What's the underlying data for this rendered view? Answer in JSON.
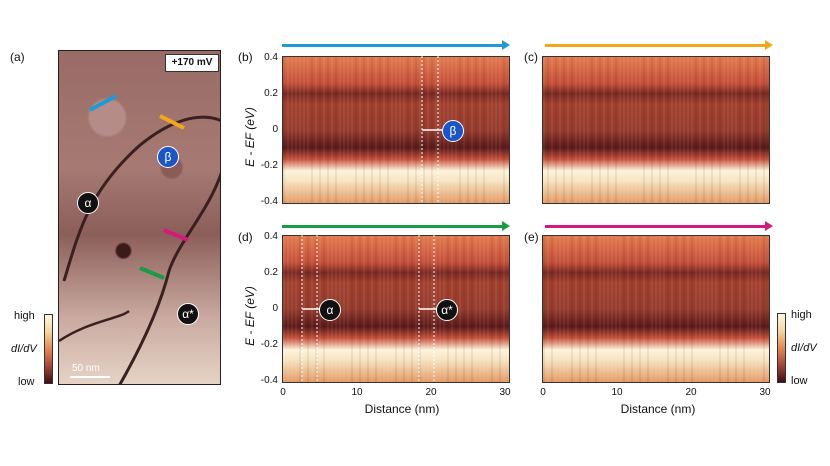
{
  "panels": {
    "a": "(a)",
    "b": "(b)",
    "c": "(c)",
    "d": "(d)",
    "e": "(e)"
  },
  "map": {
    "bias": "+170 mV",
    "scalebar": "50 nm",
    "labels": {
      "alpha": "α",
      "beta": "β",
      "alpha_star": "α*"
    }
  },
  "colorbar": {
    "high": "high",
    "low": "low",
    "quantity": "dI/dV"
  },
  "axes": {
    "ylabel": "E - EF (eV)",
    "xlabel": "Distance (nm)",
    "y_ticks": [
      "0.4",
      "0.2",
      "0",
      "-0.2",
      "-0.4"
    ],
    "x_ticks": [
      "0",
      "10",
      "20",
      "30"
    ]
  },
  "annotations": {
    "b": "β",
    "d1": "α",
    "d2": "α*"
  },
  "colors": {
    "blue": "#1f9ad6",
    "orange": "#f2a71b",
    "green": "#1a9b45",
    "magenta": "#d61a7b"
  },
  "chart_data": {
    "type": "heatmap",
    "xlabel": "Distance (nm)",
    "ylabel": "E - EF (eV)",
    "xlim": [
      0,
      30
    ],
    "ylim": [
      -0.4,
      0.4
    ],
    "panels": [
      "b",
      "c",
      "d",
      "e"
    ]
  }
}
